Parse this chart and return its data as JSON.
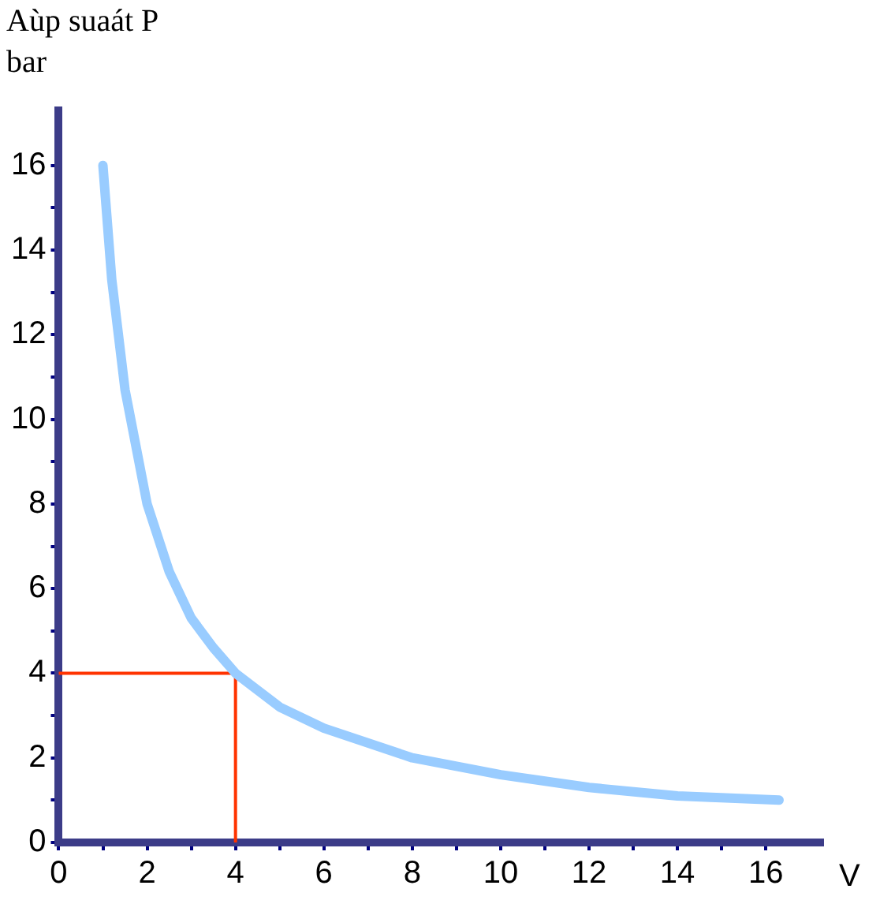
{
  "chart_data": {
    "type": "line",
    "ylabel": "Aùp suaát P\nbar",
    "xlabel": "V",
    "xlim": [
      0,
      17.3
    ],
    "ylim": [
      0,
      17.3
    ],
    "xticks": [
      0,
      {
        "value": 1,
        "label": null
      },
      2,
      {
        "value": 3,
        "label": null
      },
      4,
      {
        "value": 5,
        "label": null
      },
      6,
      {
        "value": 7,
        "label": null
      },
      8,
      {
        "value": 9,
        "label": null
      },
      10,
      {
        "value": 11,
        "label": null
      },
      12,
      {
        "value": 13,
        "label": null
      },
      14,
      {
        "value": 15,
        "label": null
      },
      16
    ],
    "yticks": [
      0,
      {
        "value": 1,
        "label": null
      },
      2,
      {
        "value": 3,
        "label": null
      },
      4,
      {
        "value": 5,
        "label": null
      },
      6,
      {
        "value": 7,
        "label": null
      },
      8,
      {
        "value": 9,
        "label": null
      },
      10,
      {
        "value": 11,
        "label": null
      },
      12,
      {
        "value": 13,
        "label": null
      },
      14,
      {
        "value": 15,
        "label": null
      },
      16
    ],
    "grid": false,
    "legend": false,
    "marker": "none",
    "series": [
      {
        "color": "#99ccff",
        "x": [
          1,
          1.2,
          1.5,
          2,
          2.5,
          3,
          3.5,
          4,
          5,
          6,
          8,
          10,
          12,
          14,
          16.3
        ],
        "values": [
          16,
          13.3,
          10.7,
          8,
          6.4,
          5.3,
          4.6,
          4,
          3.2,
          2.7,
          2,
          1.6,
          1.3,
          1.1,
          1
        ]
      },
      {
        "color": "#ff3300",
        "x": [
          0,
          4,
          4
        ],
        "values": [
          4,
          4,
          0
        ]
      }
    ]
  }
}
